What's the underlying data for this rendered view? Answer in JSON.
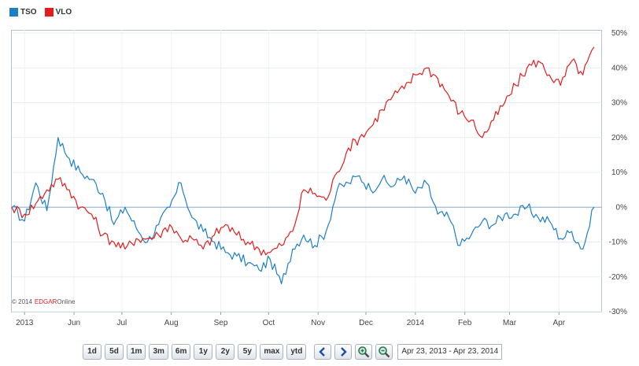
{
  "legend": [
    {
      "name": "TSO",
      "color": "#1f7fc6"
    },
    {
      "name": "VLO",
      "color": "#e21d1d"
    }
  ],
  "copyright": {
    "prefix": "© 2014",
    "brand_red": "EDGAR",
    "brand_rest": "Online"
  },
  "toolbar": {
    "range_buttons": [
      "1d",
      "5d",
      "1m",
      "3m",
      "6m",
      "1y",
      "2y",
      "5y",
      "max",
      "ytd"
    ],
    "date_range": "Apr 23, 2013 - Apr 23, 2014"
  },
  "chart_data": {
    "type": "line",
    "title": "",
    "xlabel": "",
    "ylabel": "",
    "x_tick_labels": [
      "2013",
      "Jun",
      "Jul",
      "Aug",
      "Sep",
      "Oct",
      "Nov",
      "Dec",
      "2014",
      "Feb",
      "Mar",
      "Apr"
    ],
    "y_tick_labels": [
      "50%",
      "40%",
      "30%",
      "20%",
      "10%",
      "0%",
      "-10%",
      "-20%",
      "-30%"
    ],
    "ylim": [
      -30,
      50
    ],
    "grid": true,
    "legend_position": "top-left",
    "x": [
      "2013-04-23",
      "2013-05-01",
      "2013-05-08",
      "2013-05-15",
      "2013-05-22",
      "2013-05-29",
      "2013-06-05",
      "2013-06-12",
      "2013-06-19",
      "2013-06-26",
      "2013-07-03",
      "2013-07-10",
      "2013-07-17",
      "2013-07-24",
      "2013-07-31",
      "2013-08-07",
      "2013-08-14",
      "2013-08-21",
      "2013-08-28",
      "2013-09-04",
      "2013-09-11",
      "2013-09-18",
      "2013-09-25",
      "2013-10-02",
      "2013-10-09",
      "2013-10-16",
      "2013-10-23",
      "2013-10-30",
      "2013-11-06",
      "2013-11-13",
      "2013-11-20",
      "2013-11-27",
      "2013-12-04",
      "2013-12-11",
      "2013-12-18",
      "2013-12-25",
      "2014-01-01",
      "2014-01-08",
      "2014-01-15",
      "2014-01-22",
      "2014-01-29",
      "2014-02-05",
      "2014-02-12",
      "2014-02-19",
      "2014-02-26",
      "2014-03-05",
      "2014-03-12",
      "2014-03-19",
      "2014-03-26",
      "2014-04-02",
      "2014-04-09",
      "2014-04-16",
      "2014-04-23"
    ],
    "series": [
      {
        "name": "TSO",
        "color": "#1f7fc6",
        "values": [
          0,
          -4,
          7,
          -1,
          20,
          14,
          10,
          8,
          4,
          -5,
          0,
          -6,
          -10,
          -5,
          0,
          7,
          -3,
          -7,
          -10,
          -13,
          -14,
          -16,
          -18,
          -15,
          -22,
          -12,
          -8,
          -11,
          -7,
          5,
          7,
          9,
          5,
          8,
          6,
          9,
          4,
          7,
          -2,
          -3,
          -11,
          -8,
          -4,
          -5,
          -2,
          -2,
          0,
          -3,
          -4,
          -9,
          -7,
          -12,
          0
        ]
      },
      {
        "name": "VLO",
        "color": "#e21d1d",
        "values": [
          0,
          -2,
          1,
          5,
          8,
          5,
          0,
          -2,
          -8,
          -10,
          -12,
          -9,
          -9,
          -8,
          -5,
          -9,
          -9,
          -12,
          -8,
          -5,
          -8,
          -10,
          -12,
          -13,
          -11,
          -7,
          5,
          4,
          2,
          10,
          17,
          20,
          23,
          28,
          32,
          34,
          38,
          40,
          37,
          32,
          27,
          25,
          20,
          25,
          30,
          35,
          40,
          42,
          38,
          35,
          42,
          38,
          46
        ]
      }
    ]
  }
}
